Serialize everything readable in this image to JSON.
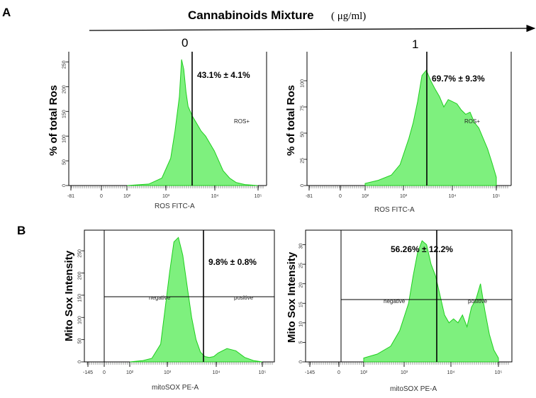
{
  "figure": {
    "panel_a": "A",
    "panel_b": "B",
    "header_title": "Cannabinoids Mixture",
    "header_unit": "( μg/ml)",
    "dose_0": "0",
    "dose_1": "1"
  },
  "colors": {
    "fill": "#7ef07e",
    "edge": "#1fcf1f",
    "axis": "#000000"
  },
  "chart_data": [
    {
      "type": "area",
      "panel": "A",
      "dose": "0",
      "ylabel": "% of total Ros",
      "xlabel": "ROS FITC-A",
      "x_scale": "log",
      "y_ticks": [
        "0",
        "50",
        "100",
        "150",
        "200",
        "250"
      ],
      "x_ticks": [
        "-81",
        "0",
        "10²",
        "10³",
        "10⁴",
        "10⁵"
      ],
      "ylim": [
        0,
        265
      ],
      "gate_label": "ROS+",
      "stat": "43.1% ± 4.1%",
      "x": [
        2.0,
        2.5,
        2.8,
        3.0,
        3.1,
        3.2,
        3.25,
        3.3,
        3.35,
        3.4,
        3.5,
        3.6,
        3.7,
        3.8,
        3.9,
        4.0,
        4.1,
        4.2,
        4.35,
        4.5,
        4.7,
        5.0
      ],
      "y": [
        0,
        3,
        15,
        55,
        110,
        180,
        255,
        235,
        190,
        160,
        140,
        125,
        110,
        100,
        85,
        70,
        50,
        30,
        15,
        6,
        2,
        0
      ]
    },
    {
      "type": "area",
      "panel": "A",
      "dose": "1",
      "ylabel": "% of total Ros",
      "xlabel": "ROS FITC-A",
      "x_scale": "log",
      "y_ticks": [
        "0",
        "25",
        "50",
        "75",
        "100"
      ],
      "x_ticks": [
        "-81",
        "0",
        "10²",
        "10³",
        "10⁴",
        "10⁵"
      ],
      "ylim": [
        0,
        125
      ],
      "gate_label": "ROS+",
      "stat": "69.7% ± 9.3%",
      "x": [
        2.0,
        2.3,
        2.6,
        2.8,
        3.0,
        3.1,
        3.2,
        3.3,
        3.4,
        3.5,
        3.6,
        3.7,
        3.8,
        3.9,
        4.0,
        4.1,
        4.2,
        4.3,
        4.4,
        4.5,
        4.6,
        4.7,
        4.8,
        4.9,
        5.0
      ],
      "y": [
        2,
        5,
        10,
        20,
        45,
        60,
        80,
        105,
        110,
        100,
        92,
        85,
        75,
        82,
        80,
        78,
        72,
        68,
        70,
        60,
        55,
        45,
        35,
        22,
        8
      ]
    },
    {
      "type": "area",
      "panel": "B",
      "dose": "0",
      "ylabel": "Mito Sox  Intensity",
      "xlabel": "mitoSOX PE-A",
      "x_scale": "log",
      "y_ticks": [
        "0",
        "50",
        "100",
        "150",
        "200",
        "250"
      ],
      "x_ticks": [
        "-145",
        "0",
        "10²",
        "10³",
        "10⁴",
        "10⁵"
      ],
      "ylim": [
        0,
        290
      ],
      "gate_labels": [
        "negative",
        "positive"
      ],
      "stat": "9.8% ± 0.8%",
      "x": [
        2.0,
        2.3,
        2.5,
        2.7,
        2.8,
        2.9,
        3.0,
        3.1,
        3.2,
        3.3,
        3.4,
        3.5,
        3.6,
        3.7,
        3.8,
        3.9,
        4.0,
        4.2,
        4.4,
        4.6,
        4.8,
        5.0
      ],
      "y": [
        0,
        3,
        8,
        40,
        120,
        200,
        270,
        280,
        240,
        170,
        100,
        50,
        22,
        12,
        10,
        12,
        20,
        30,
        25,
        10,
        3,
        0
      ]
    },
    {
      "type": "area",
      "panel": "B",
      "dose": "1",
      "ylabel": "Mito Sox  Intensity",
      "xlabel": "mitoSOX PE-A",
      "x_scale": "log",
      "y_ticks": [
        "0",
        "5",
        "10",
        "15",
        "20",
        "25",
        "30"
      ],
      "x_ticks": [
        "-145",
        "0",
        "10²",
        "10³",
        "10⁴",
        "10⁵"
      ],
      "ylim": [
        0,
        33
      ],
      "gate_labels": [
        "negative",
        "positive"
      ],
      "stat": "56.26% ± 12.2%",
      "x": [
        2.0,
        2.3,
        2.6,
        2.8,
        3.0,
        3.1,
        3.2,
        3.3,
        3.4,
        3.5,
        3.6,
        3.7,
        3.8,
        3.9,
        4.0,
        4.1,
        4.2,
        4.3,
        4.4,
        4.5,
        4.6,
        4.7,
        4.8,
        4.9,
        5.0
      ],
      "y": [
        1,
        2,
        4,
        8,
        15,
        22,
        28,
        31,
        30,
        25,
        22,
        17,
        12,
        10,
        11,
        10,
        12,
        9,
        14,
        16,
        20,
        13,
        7,
        3,
        1
      ]
    }
  ]
}
